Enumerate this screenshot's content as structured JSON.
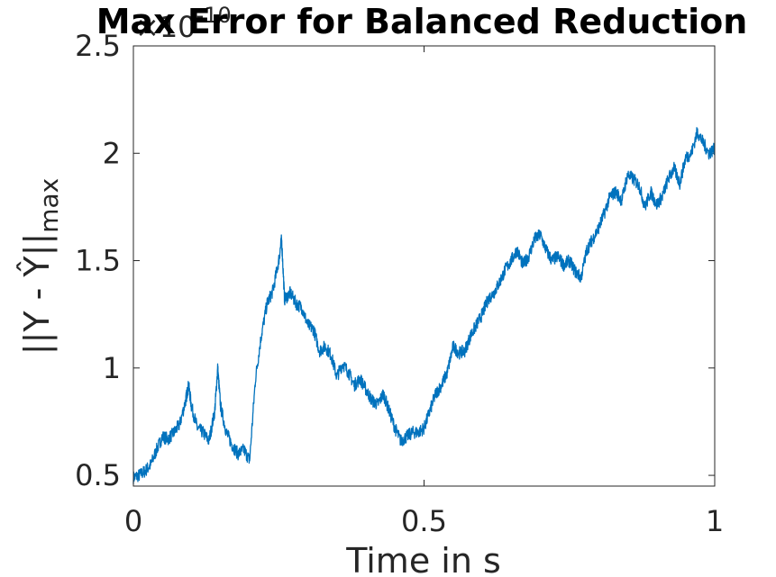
{
  "chart_data": {
    "type": "line",
    "title": "Max Error for Balanced Reduction",
    "xlabel": "Time in s",
    "ylabel_main": "||Y - Ŷ||",
    "ylabel_sub": "max",
    "exponent_base": "×10",
    "exponent_power": "-10",
    "xlim": [
      0,
      1
    ],
    "ylim": [
      0.45,
      2.5
    ],
    "xticks": [
      0,
      0.5,
      1
    ],
    "xtick_labels": [
      "0",
      "0.5",
      "1"
    ],
    "yticks": [
      0.5,
      1,
      1.5,
      2,
      2.5
    ],
    "ytick_labels": [
      "0.5",
      "1",
      "1.5",
      "2",
      "2.5"
    ],
    "grid": false,
    "line_color": "#0072BD",
    "series": [
      {
        "x": [
          0,
          0.01,
          0.02,
          0.03,
          0.04,
          0.05,
          0.06,
          0.07,
          0.08,
          0.09,
          0.095,
          0.1,
          0.11,
          0.12,
          0.13,
          0.14,
          0.145,
          0.15,
          0.16,
          0.17,
          0.18,
          0.19,
          0.2,
          0.21,
          0.22,
          0.23,
          0.24,
          0.25,
          0.255,
          0.26,
          0.27,
          0.28,
          0.29,
          0.3,
          0.31,
          0.32,
          0.33,
          0.34,
          0.35,
          0.36,
          0.37,
          0.38,
          0.39,
          0.4,
          0.41,
          0.42,
          0.43,
          0.44,
          0.45,
          0.46,
          0.47,
          0.48,
          0.49,
          0.5,
          0.51,
          0.52,
          0.53,
          0.54,
          0.55,
          0.56,
          0.57,
          0.58,
          0.59,
          0.6,
          0.61,
          0.62,
          0.63,
          0.64,
          0.65,
          0.66,
          0.67,
          0.68,
          0.69,
          0.7,
          0.71,
          0.72,
          0.73,
          0.74,
          0.75,
          0.76,
          0.77,
          0.78,
          0.79,
          0.8,
          0.81,
          0.82,
          0.83,
          0.84,
          0.85,
          0.86,
          0.87,
          0.88,
          0.89,
          0.9,
          0.91,
          0.92,
          0.93,
          0.94,
          0.95,
          0.96,
          0.97,
          0.98,
          0.99,
          1
        ],
        "y": [
          0.49,
          0.5,
          0.52,
          0.55,
          0.62,
          0.68,
          0.67,
          0.7,
          0.74,
          0.85,
          0.92,
          0.82,
          0.72,
          0.7,
          0.66,
          0.8,
          1.0,
          0.82,
          0.7,
          0.64,
          0.6,
          0.62,
          0.57,
          0.95,
          1.15,
          1.3,
          1.36,
          1.5,
          1.6,
          1.32,
          1.35,
          1.3,
          1.28,
          1.2,
          1.18,
          1.08,
          1.1,
          1.06,
          0.96,
          1.02,
          0.98,
          0.92,
          0.95,
          0.9,
          0.85,
          0.83,
          0.88,
          0.8,
          0.72,
          0.66,
          0.68,
          0.7,
          0.7,
          0.72,
          0.8,
          0.88,
          0.92,
          0.98,
          1.1,
          1.07,
          1.08,
          1.15,
          1.2,
          1.25,
          1.32,
          1.35,
          1.4,
          1.46,
          1.5,
          1.55,
          1.48,
          1.52,
          1.6,
          1.62,
          1.55,
          1.5,
          1.52,
          1.48,
          1.5,
          1.45,
          1.42,
          1.55,
          1.6,
          1.65,
          1.72,
          1.8,
          1.82,
          1.78,
          1.9,
          1.88,
          1.85,
          1.75,
          1.82,
          1.76,
          1.8,
          1.88,
          1.93,
          1.86,
          1.98,
          2.0,
          2.1,
          2.05,
          2.0,
          2.02
        ]
      }
    ]
  }
}
